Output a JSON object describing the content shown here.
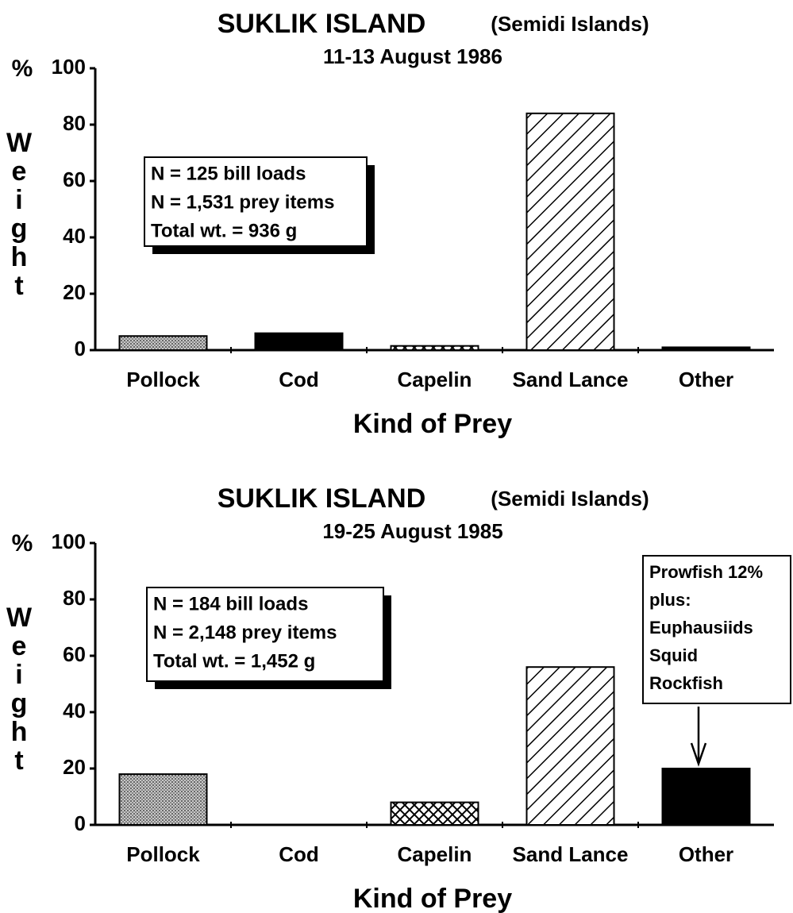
{
  "chart_data": [
    {
      "type": "bar",
      "title": "SUKLIK ISLAND",
      "subtitle": "(Semidi Islands)",
      "date": "11-13 August 1986",
      "ylabel_unit": "%",
      "ylabel": "Weight",
      "xlabel": "Kind of Prey",
      "categories": [
        "Pollock",
        "Cod",
        "Capelin",
        "Sand Lance",
        "Other"
      ],
      "values": [
        5,
        6,
        1.5,
        84,
        1
      ],
      "patterns": [
        "dots",
        "solid",
        "cross",
        "hatch",
        "solid"
      ],
      "ylim": [
        0,
        100
      ],
      "yticks": [
        0,
        20,
        40,
        60,
        80,
        100
      ],
      "annotations": [
        {
          "lines": [
            "N = 125 bill loads",
            "N = 1,531 prey items",
            "Total wt. = 936 g"
          ]
        }
      ]
    },
    {
      "type": "bar",
      "title": "SUKLIK ISLAND",
      "subtitle": "(Semidi Islands)",
      "date": "19-25 August 1985",
      "ylabel_unit": "%",
      "ylabel": "Weight",
      "xlabel": "Kind of Prey",
      "categories": [
        "Pollock",
        "Cod",
        "Capelin",
        "Sand Lance",
        "Other"
      ],
      "values": [
        18,
        0,
        8,
        56,
        20
      ],
      "patterns": [
        "dots",
        "solid",
        "cross",
        "hatch",
        "solid"
      ],
      "ylim": [
        0,
        100
      ],
      "yticks": [
        0,
        20,
        40,
        60,
        80,
        100
      ],
      "annotations": [
        {
          "lines": [
            "N = 184 bill loads",
            "N = 2,148 prey items",
            "Total wt. = 1,452 g"
          ]
        },
        {
          "lines": [
            "Prowfish 12%",
            "plus:",
            "Euphausiids",
            "Squid",
            "Rockfish"
          ]
        }
      ]
    }
  ]
}
